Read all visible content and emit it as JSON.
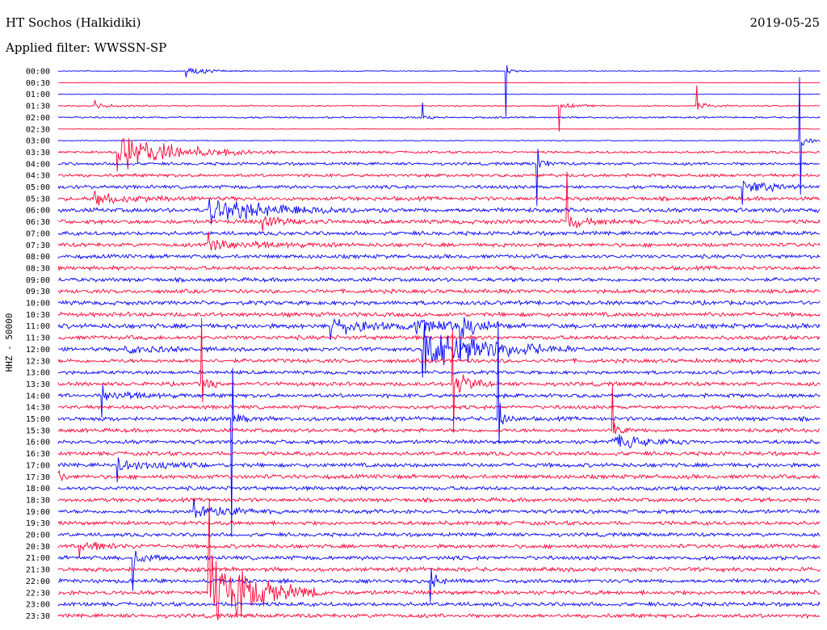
{
  "header": {
    "station": "HT Sochos (Halkidiki)",
    "date": "2019-05-25",
    "filter": "Applied filter: WWSSN-SP"
  },
  "chart_data": {
    "type": "line",
    "title": "HT Sochos (Halkidiki)",
    "ylabel": "HHZ - 50000",
    "row_labels": [
      "00:00",
      "00:30",
      "01:00",
      "01:30",
      "02:00",
      "02:30",
      "03:00",
      "03:30",
      "04:00",
      "04:30",
      "05:00",
      "05:30",
      "06:00",
      "06:30",
      "07:00",
      "07:30",
      "08:00",
      "08:30",
      "09:00",
      "09:30",
      "10:00",
      "10:30",
      "11:00",
      "11:30",
      "12:00",
      "12:30",
      "13:00",
      "13:30",
      "14:00",
      "14:30",
      "15:00",
      "15:30",
      "16:00",
      "16:30",
      "17:00",
      "17:30",
      "18:00",
      "18:30",
      "19:00",
      "19:30",
      "20:00",
      "20:30",
      "21:00",
      "21:30",
      "22:00",
      "22:30",
      "23:00",
      "23:30"
    ],
    "series_colors": [
      "#0000ff",
      "#ff0033"
    ],
    "noise_levels": [
      0.4,
      0.2,
      0.3,
      0.6,
      0.9,
      0.3,
      0.5,
      1.2,
      1.5,
      1.6,
      1.8,
      2.0,
      2.2,
      2.1,
      2.0,
      2.0,
      2.0,
      2.0,
      2.0,
      2.0,
      2.1,
      2.2,
      2.4,
      2.1,
      1.9,
      2.0,
      1.8,
      2.0,
      2.0,
      1.9,
      2.1,
      2.0,
      2.0,
      2.0,
      2.1,
      2.1,
      2.0,
      2.0,
      2.0,
      2.0,
      1.9,
      2.0,
      2.0,
      2.1,
      2.0,
      2.1,
      2.0,
      2.0
    ],
    "events": [
      {
        "row": 0,
        "t": 0.17,
        "amp": 4,
        "dur": 0.03
      },
      {
        "row": 0,
        "t": 0.59,
        "amp": 4,
        "dur": 0.01
      },
      {
        "row": 3,
        "t": 0.05,
        "amp": 2,
        "dur": 0.03
      },
      {
        "row": 3,
        "t": 0.66,
        "amp": 3,
        "dur": 0.02
      },
      {
        "row": 3,
        "t": 0.84,
        "amp": 3,
        "dur": 0.02
      },
      {
        "row": 4,
        "t": 0.48,
        "amp": 3,
        "dur": 0.01
      },
      {
        "row": 6,
        "t": 0.975,
        "amp": 8,
        "dur": 0.01
      },
      {
        "row": 7,
        "t": 0.08,
        "amp": 18,
        "dur": 0.07
      },
      {
        "row": 8,
        "t": 0.63,
        "amp": 5,
        "dur": 0.01
      },
      {
        "row": 10,
        "t": 0.9,
        "amp": 6,
        "dur": 0.04
      },
      {
        "row": 11,
        "t": 0.05,
        "amp": 6,
        "dur": 0.04
      },
      {
        "row": 12,
        "t": 0.2,
        "amp": 12,
        "dur": 0.08
      },
      {
        "row": 13,
        "t": 0.27,
        "amp": 5,
        "dur": 0.03
      },
      {
        "row": 13,
        "t": 0.67,
        "amp": 7,
        "dur": 0.02
      },
      {
        "row": 15,
        "t": 0.2,
        "amp": 6,
        "dur": 0.06
      },
      {
        "row": 22,
        "t": 0.36,
        "amp": 7,
        "dur": 0.06
      },
      {
        "row": 22,
        "t": 0.47,
        "amp": 8,
        "dur": 0.04
      },
      {
        "row": 22,
        "t": 0.53,
        "amp": 10,
        "dur": 0.02
      },
      {
        "row": 24,
        "t": 0.48,
        "amp": 28,
        "dur": 0.07
      },
      {
        "row": 24,
        "t": 0.09,
        "amp": 5,
        "dur": 0.04
      },
      {
        "row": 27,
        "t": 0.19,
        "amp": 7,
        "dur": 0.01
      },
      {
        "row": 27,
        "t": 0.52,
        "amp": 12,
        "dur": 0.02
      },
      {
        "row": 28,
        "t": 0.06,
        "amp": 6,
        "dur": 0.04
      },
      {
        "row": 30,
        "t": 0.23,
        "amp": 7,
        "dur": 0.01
      },
      {
        "row": 30,
        "t": 0.58,
        "amp": 8,
        "dur": 0.01
      },
      {
        "row": 31,
        "t": 0.73,
        "amp": 6,
        "dur": 0.01
      },
      {
        "row": 32,
        "t": 0.73,
        "amp": 7,
        "dur": 0.04
      },
      {
        "row": 34,
        "t": 0.08,
        "amp": 6,
        "dur": 0.04
      },
      {
        "row": 35,
        "t": 0.0,
        "amp": 8,
        "dur": 0.005
      },
      {
        "row": 38,
        "t": 0.18,
        "amp": 9,
        "dur": 0.04
      },
      {
        "row": 41,
        "t": 0.03,
        "amp": 6,
        "dur": 0.03
      },
      {
        "row": 42,
        "t": 0.1,
        "amp": 6,
        "dur": 0.02
      },
      {
        "row": 44,
        "t": 0.49,
        "amp": 8,
        "dur": 0.01
      },
      {
        "row": 45,
        "t": 0.2,
        "amp": 45,
        "dur": 0.05
      }
    ]
  }
}
